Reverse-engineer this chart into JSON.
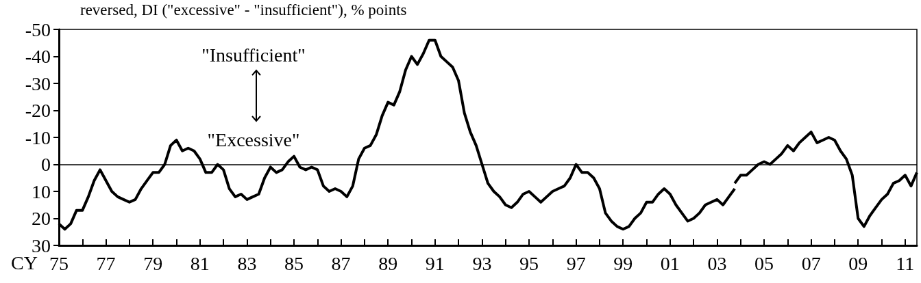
{
  "chart_data": {
    "type": "line",
    "ylabel": "reversed, DI (\"excessive\" - \"insufficient\"), % points",
    "xlabel": "CY",
    "annotations": [
      "\"Insufficient\"",
      "\"Excessive\""
    ],
    "series": [
      {
        "color": "#000000",
        "x": [
          1975,
          1975.25,
          1975.5,
          1975.75,
          1976,
          1976.25,
          1976.5,
          1976.75,
          1977,
          1977.25,
          1977.5,
          1977.75,
          1978,
          1978.25,
          1978.5,
          1978.75,
          1979,
          1979.25,
          1979.5,
          1979.75,
          1980,
          1980.25,
          1980.5,
          1980.75,
          1981,
          1981.25,
          1981.5,
          1981.75,
          1982,
          1982.25,
          1982.5,
          1982.75,
          1983,
          1983.25,
          1983.5,
          1983.75,
          1984,
          1984.25,
          1984.5,
          1984.75,
          1985,
          1985.25,
          1985.5,
          1985.75,
          1986,
          1986.25,
          1986.5,
          1986.75,
          1987,
          1987.25,
          1987.5,
          1987.75,
          1988,
          1988.25,
          1988.5,
          1988.75,
          1989,
          1989.25,
          1989.5,
          1989.75,
          1990,
          1990.25,
          1990.5,
          1990.75,
          1991,
          1991.25,
          1991.5,
          1991.75,
          1992,
          1992.25,
          1992.5,
          1992.75,
          1993,
          1993.25,
          1993.5,
          1993.75,
          1994,
          1994.25,
          1994.5,
          1994.75,
          1995,
          1995.25,
          1995.5,
          1995.75,
          1996,
          1996.25,
          1996.5,
          1996.75,
          1997,
          1997.25,
          1997.5,
          1997.75,
          1998,
          1998.25,
          1998.5,
          1998.75,
          1999,
          1999.25,
          1999.5,
          1999.75,
          2000,
          2000.25,
          2000.5,
          2000.75,
          2001,
          2001.25,
          2001.5,
          2001.75,
          2002,
          2002.25,
          2002.5,
          2002.75,
          2003,
          2003.25,
          2003.5,
          2003.75
        ],
        "values": [
          22,
          24,
          22,
          17,
          17,
          12,
          6,
          2,
          6,
          10,
          12,
          13,
          14,
          13,
          9,
          6,
          3,
          3,
          0,
          -7,
          -9,
          -5,
          -6,
          -5,
          -2,
          3,
          3,
          0,
          2,
          9,
          12,
          11,
          13,
          12,
          11,
          5,
          1,
          3,
          2,
          -1,
          -3,
          1,
          2,
          1,
          2,
          8,
          10,
          9,
          10,
          12,
          8,
          -2,
          -6,
          -7,
          -11,
          -18,
          -23,
          -22,
          -27,
          -35,
          -40,
          -37,
          -41,
          -46,
          -46,
          -40,
          -38,
          -36,
          -31,
          -19,
          -12,
          -7,
          0,
          7,
          10,
          12,
          15,
          16,
          14,
          11,
          10,
          12,
          14,
          12,
          10,
          9,
          8,
          5,
          0,
          3,
          3,
          5,
          9,
          18,
          21,
          23,
          24,
          23,
          20,
          18,
          14,
          14,
          11,
          9,
          11,
          15,
          18,
          21,
          20,
          18,
          15,
          14,
          13,
          15,
          12,
          9
        ]
      },
      {
        "color": "#000000",
        "x": [
          2003.75,
          2004,
          2004.25,
          2004.5,
          2004.75,
          2005,
          2005.25,
          2005.5,
          2005.75,
          2006,
          2006.25,
          2006.5,
          2006.75,
          2007,
          2007.25,
          2007.5,
          2007.75,
          2008,
          2008.25,
          2008.5,
          2008.75,
          2009,
          2009.25,
          2009.5,
          2009.75,
          2010,
          2010.25,
          2010.5,
          2010.75,
          2011,
          2011.25,
          2011.5
        ],
        "values": [
          7,
          4,
          4,
          2,
          0,
          -1,
          0,
          -2,
          -4,
          -7,
          -5,
          -8,
          -10,
          -12,
          -8,
          -9,
          -10,
          -9,
          -5,
          -2,
          4,
          20,
          23,
          19,
          16,
          13,
          11,
          7,
          6,
          4,
          8,
          3
        ]
      }
    ],
    "xlim": [
      1975,
      2011.5
    ],
    "xticks": [
      {
        "value": 1975,
        "label": "75"
      },
      {
        "value": 1976,
        "label": null
      },
      {
        "value": 1977,
        "label": "77"
      },
      {
        "value": 1978,
        "label": null
      },
      {
        "value": 1979,
        "label": "79"
      },
      {
        "value": 1980,
        "label": null
      },
      {
        "value": 1981,
        "label": "81"
      },
      {
        "value": 1982,
        "label": null
      },
      {
        "value": 1983,
        "label": "83"
      },
      {
        "value": 1984,
        "label": null
      },
      {
        "value": 1985,
        "label": "85"
      },
      {
        "value": 1986,
        "label": null
      },
      {
        "value": 1987,
        "label": "87"
      },
      {
        "value": 1988,
        "label": null
      },
      {
        "value": 1989,
        "label": "89"
      },
      {
        "value": 1990,
        "label": null
      },
      {
        "value": 1991,
        "label": "91"
      },
      {
        "value": 1992,
        "label": null
      },
      {
        "value": 1993,
        "label": "93"
      },
      {
        "value": 1994,
        "label": null
      },
      {
        "value": 1995,
        "label": "95"
      },
      {
        "value": 1996,
        "label": null
      },
      {
        "value": 1997,
        "label": "97"
      },
      {
        "value": 1998,
        "label": null
      },
      {
        "value": 1999,
        "label": "99"
      },
      {
        "value": 2000,
        "label": null
      },
      {
        "value": 2001,
        "label": "01"
      },
      {
        "value": 2002,
        "label": null
      },
      {
        "value": 2003,
        "label": "03"
      },
      {
        "value": 2004,
        "label": null
      },
      {
        "value": 2005,
        "label": "05"
      },
      {
        "value": 2006,
        "label": null
      },
      {
        "value": 2007,
        "label": "07"
      },
      {
        "value": 2008,
        "label": null
      },
      {
        "value": 2009,
        "label": "09"
      },
      {
        "value": 2010,
        "label": null
      },
      {
        "value": 2011,
        "label": "11"
      }
    ],
    "ylim": [
      30,
      -50
    ],
    "yticks": [
      -50,
      -40,
      -30,
      -20,
      -10,
      0,
      10,
      20,
      30
    ],
    "ref_lines": [
      {
        "axis": "y",
        "value": 0,
        "color": "#000000",
        "line_style": "solid"
      }
    ],
    "grid": false,
    "marker": "none",
    "line_style": "solid"
  }
}
